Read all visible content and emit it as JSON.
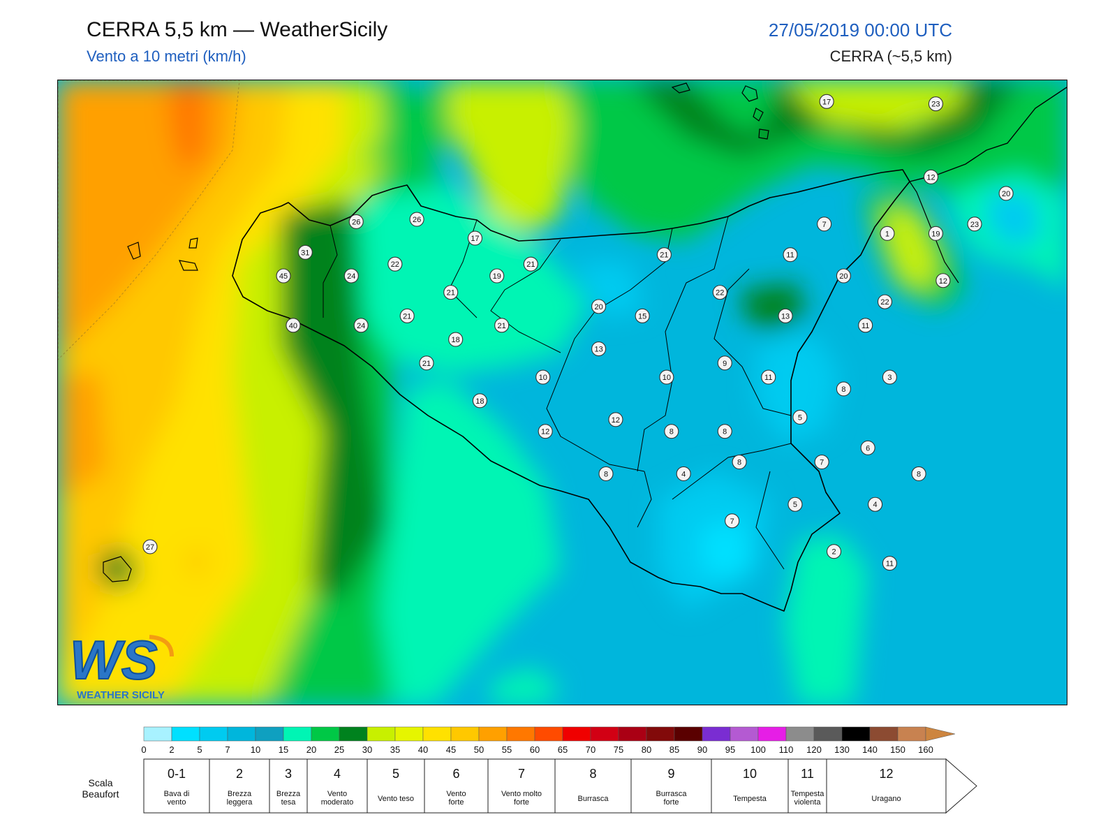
{
  "header": {
    "title": "CERRA 5,5 km — WeatherSicily",
    "subtitle": "Vento a 10 metri (km/h)",
    "datetime": "27/05/2019 00:00 UTC",
    "model": "CERRA (~5,5 km)"
  },
  "logo": {
    "text": "WS",
    "caption": "WEATHER SICILY"
  },
  "stations": [
    {
      "v": "17",
      "lon": 14.79,
      "lat": 38.63
    },
    {
      "v": "23",
      "lon": 15.24,
      "lat": 38.62
    },
    {
      "v": "26",
      "lon": 12.85,
      "lat": 38.12
    },
    {
      "v": "26",
      "lon": 13.1,
      "lat": 38.13
    },
    {
      "v": "17",
      "lon": 13.34,
      "lat": 38.05
    },
    {
      "v": "31",
      "lon": 12.64,
      "lat": 37.99
    },
    {
      "v": "22",
      "lon": 13.01,
      "lat": 37.94
    },
    {
      "v": "21",
      "lon": 13.57,
      "lat": 37.94
    },
    {
      "v": "21",
      "lon": 14.12,
      "lat": 37.98
    },
    {
      "v": "11",
      "lon": 14.64,
      "lat": 37.98
    },
    {
      "v": "45",
      "lon": 12.55,
      "lat": 37.89
    },
    {
      "v": "24",
      "lon": 12.83,
      "lat": 37.89
    },
    {
      "v": "19",
      "lon": 13.43,
      "lat": 37.89
    },
    {
      "v": "20",
      "lon": 14.86,
      "lat": 37.89
    },
    {
      "v": "21",
      "lon": 13.24,
      "lat": 37.82
    },
    {
      "v": "22",
      "lon": 14.35,
      "lat": 37.82
    },
    {
      "v": "20",
      "lon": 13.85,
      "lat": 37.76
    },
    {
      "v": "21",
      "lon": 13.06,
      "lat": 37.72
    },
    {
      "v": "15",
      "lon": 14.03,
      "lat": 37.72
    },
    {
      "v": "13",
      "lon": 14.62,
      "lat": 37.72
    },
    {
      "v": "40",
      "lon": 12.59,
      "lat": 37.68
    },
    {
      "v": "24",
      "lon": 12.87,
      "lat": 37.68
    },
    {
      "v": "21",
      "lon": 13.45,
      "lat": 37.68
    },
    {
      "v": "11",
      "lon": 14.95,
      "lat": 37.68
    },
    {
      "v": "18",
      "lon": 13.26,
      "lat": 37.62
    },
    {
      "v": "13",
      "lon": 13.85,
      "lat": 37.58
    },
    {
      "v": "21",
      "lon": 13.14,
      "lat": 37.52
    },
    {
      "v": "9",
      "lon": 14.37,
      "lat": 37.52
    },
    {
      "v": "10",
      "lon": 13.62,
      "lat": 37.46
    },
    {
      "v": "10",
      "lon": 14.13,
      "lat": 37.46
    },
    {
      "v": "11",
      "lon": 14.55,
      "lat": 37.46
    },
    {
      "v": "3",
      "lon": 15.05,
      "lat": 37.46
    },
    {
      "v": "8",
      "lon": 14.86,
      "lat": 37.41
    },
    {
      "v": "18",
      "lon": 13.36,
      "lat": 37.36
    },
    {
      "v": "5",
      "lon": 14.68,
      "lat": 37.29
    },
    {
      "v": "12",
      "lon": 13.92,
      "lat": 37.28
    },
    {
      "v": "12",
      "lon": 13.63,
      "lat": 37.23
    },
    {
      "v": "8",
      "lon": 14.15,
      "lat": 37.23
    },
    {
      "v": "8",
      "lon": 14.37,
      "lat": 37.23
    },
    {
      "v": "6",
      "lon": 14.96,
      "lat": 37.16
    },
    {
      "v": "8",
      "lon": 14.43,
      "lat": 37.1
    },
    {
      "v": "7",
      "lon": 14.77,
      "lat": 37.1
    },
    {
      "v": "8",
      "lon": 13.88,
      "lat": 37.05
    },
    {
      "v": "4",
      "lon": 14.2,
      "lat": 37.05
    },
    {
      "v": "8",
      "lon": 15.17,
      "lat": 37.05
    },
    {
      "v": "5",
      "lon": 14.66,
      "lat": 36.92
    },
    {
      "v": "4",
      "lon": 14.99,
      "lat": 36.92
    },
    {
      "v": "7",
      "lon": 14.4,
      "lat": 36.85
    },
    {
      "v": "27",
      "lon": 12.0,
      "lat": 36.74
    },
    {
      "v": "2",
      "lon": 14.82,
      "lat": 36.72
    },
    {
      "v": "11",
      "lon": 15.05,
      "lat": 36.67
    },
    {
      "v": "12",
      "lon": 15.22,
      "lat": 38.31
    },
    {
      "v": "20",
      "lon": 15.53,
      "lat": 38.24
    },
    {
      "v": "7",
      "lon": 14.78,
      "lat": 38.11
    },
    {
      "v": "1",
      "lon": 15.04,
      "lat": 38.07
    },
    {
      "v": "19",
      "lon": 15.24,
      "lat": 38.07
    },
    {
      "v": "23",
      "lon": 15.4,
      "lat": 38.11
    },
    {
      "v": "12",
      "lon": 15.27,
      "lat": 37.87
    },
    {
      "v": "22",
      "lon": 15.03,
      "lat": 37.78
    }
  ],
  "legend": {
    "ticks": [
      "0",
      "2",
      "5",
      "7",
      "10",
      "15",
      "20",
      "25",
      "30",
      "35",
      "40",
      "45",
      "50",
      "55",
      "60",
      "65",
      "70",
      "75",
      "80",
      "85",
      "90",
      "95",
      "100",
      "110",
      "120",
      "130",
      "140",
      "150",
      "160"
    ],
    "colors": [
      "#a8f2ff",
      "#00e0ff",
      "#00cbf0",
      "#00b6dc",
      "#0fa0c0",
      "#00f5b4",
      "#00c846",
      "#00821e",
      "#c8f000",
      "#e6f500",
      "#ffe100",
      "#ffc800",
      "#ffa000",
      "#ff7800",
      "#ff4b00",
      "#f00000",
      "#d20014",
      "#aa0014",
      "#820a0a",
      "#5a0000",
      "#7a2dd2",
      "#b45ad2",
      "#e61ee6",
      "#8c8c8c",
      "#5a5a5a",
      "#000000",
      "#8c4b32",
      "#c88250"
    ],
    "arrow_color": "#cd853f",
    "beaufort_title": "Scala Beaufort",
    "beaufort": [
      {
        "n": "0-1",
        "d1": "Bava di",
        "d2": "vento"
      },
      {
        "n": "2",
        "d1": "Brezza",
        "d2": "leggera"
      },
      {
        "n": "3",
        "d1": "Brezza",
        "d2": "tesa"
      },
      {
        "n": "4",
        "d1": "Vento",
        "d2": "moderato"
      },
      {
        "n": "5",
        "d1": "Vento teso",
        "d2": ""
      },
      {
        "n": "6",
        "d1": "Vento",
        "d2": "forte"
      },
      {
        "n": "7",
        "d1": "Vento molto",
        "d2": "forte"
      },
      {
        "n": "8",
        "d1": "Burrasca",
        "d2": ""
      },
      {
        "n": "9",
        "d1": "Burrasca",
        "d2": "forte"
      },
      {
        "n": "10",
        "d1": "Tempesta",
        "d2": ""
      },
      {
        "n": "11",
        "d1": "Tempesta",
        "d2": "violenta"
      },
      {
        "n": "12",
        "d1": "Uragano",
        "d2": ""
      }
    ]
  }
}
